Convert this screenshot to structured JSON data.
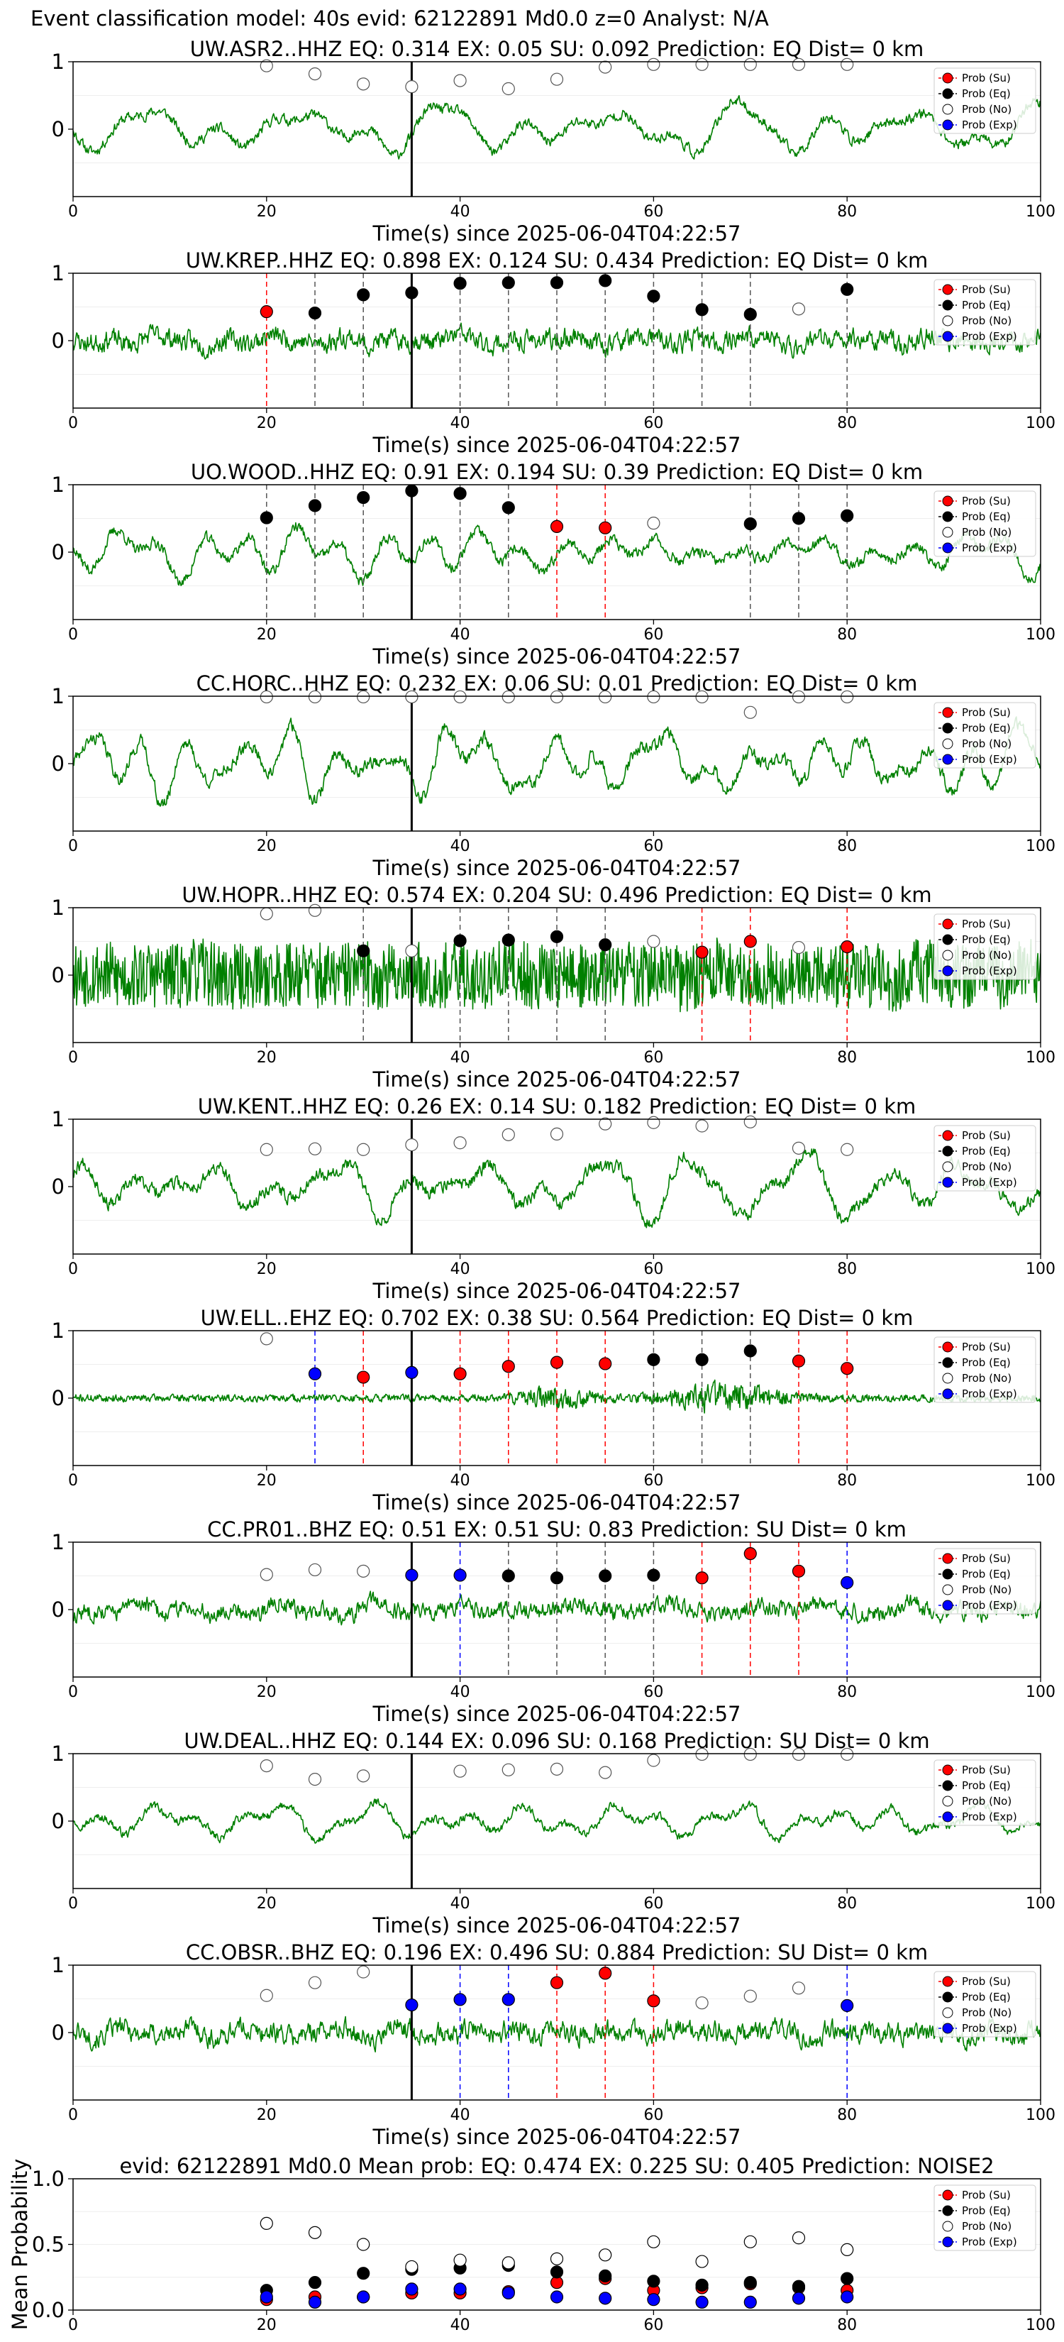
{
  "suptitle": "Event classification model: 40s evid: 62122891 Md0.0 z=0 Analyst: N/A",
  "legend_labels": [
    "Prob (Su)",
    "Prob (Eq)",
    "Prob (No)",
    "Prob (Exp)"
  ],
  "colors": {
    "su": "#ff0000",
    "eq": "#000000",
    "no": "#ffffff",
    "exp": "#0000ff",
    "waveform": "#008000"
  },
  "chart_data": [
    {
      "type": "line",
      "title": "UW.ASR2..HHZ   EQ: 0.314  EX: 0.05  SU: 0.092   Prediction: EQ    Dist= 0 km",
      "xlabel": "Time(s) since 2025-06-04T04:22:57",
      "xlim": [
        0,
        100
      ],
      "xticks": [
        0,
        20,
        40,
        60,
        80,
        100
      ],
      "ylim": [
        -1,
        1
      ],
      "yticks": [
        0,
        1
      ],
      "pick_time": 35,
      "wave": {
        "amplitude": 0.55,
        "seed": 11,
        "kind": "lowfreq"
      },
      "prob_markers": [
        {
          "t": 20,
          "p": 0.94,
          "c": "no"
        },
        {
          "t": 25,
          "p": 0.82,
          "c": "no"
        },
        {
          "t": 30,
          "p": 0.67,
          "c": "no"
        },
        {
          "t": 35,
          "p": 0.63,
          "c": "no"
        },
        {
          "t": 40,
          "p": 0.72,
          "c": "no"
        },
        {
          "t": 45,
          "p": 0.6,
          "c": "no"
        },
        {
          "t": 50,
          "p": 0.74,
          "c": "no"
        },
        {
          "t": 55,
          "p": 0.92,
          "c": "no"
        },
        {
          "t": 60,
          "p": 0.96,
          "c": "no"
        },
        {
          "t": 65,
          "p": 0.96,
          "c": "no"
        },
        {
          "t": 70,
          "p": 0.96,
          "c": "no"
        },
        {
          "t": 75,
          "p": 0.96,
          "c": "no"
        },
        {
          "t": 80,
          "p": 0.96,
          "c": "no"
        }
      ]
    },
    {
      "type": "line",
      "title": "UW.KREP..HHZ   EQ: 0.898  EX: 0.124  SU: 0.434   Prediction: EQ    Dist= 0 km",
      "xlabel": "Time(s) since 2025-06-04T04:22:57",
      "xlim": [
        0,
        100
      ],
      "xticks": [
        0,
        20,
        40,
        60,
        80,
        100
      ],
      "ylim": [
        -1,
        1
      ],
      "yticks": [
        0,
        1
      ],
      "pick_time": 35,
      "wave": {
        "amplitude": 0.35,
        "seed": 23,
        "kind": "noisy"
      },
      "prob_markers": [
        {
          "t": 20,
          "p": 0.43,
          "c": "su"
        },
        {
          "t": 25,
          "p": 0.41,
          "c": "eq"
        },
        {
          "t": 30,
          "p": 0.68,
          "c": "eq"
        },
        {
          "t": 35,
          "p": 0.71,
          "c": "eq"
        },
        {
          "t": 40,
          "p": 0.85,
          "c": "eq"
        },
        {
          "t": 45,
          "p": 0.86,
          "c": "eq"
        },
        {
          "t": 50,
          "p": 0.86,
          "c": "eq"
        },
        {
          "t": 55,
          "p": 0.89,
          "c": "eq"
        },
        {
          "t": 60,
          "p": 0.66,
          "c": "eq"
        },
        {
          "t": 65,
          "p": 0.46,
          "c": "eq"
        },
        {
          "t": 70,
          "p": 0.39,
          "c": "eq"
        },
        {
          "t": 75,
          "p": 0.47,
          "c": "no"
        },
        {
          "t": 80,
          "p": 0.76,
          "c": "eq"
        }
      ]
    },
    {
      "type": "line",
      "title": "UO.WOOD..HHZ   EQ: 0.91  EX: 0.194  SU: 0.39   Prediction: EQ    Dist= 0 km",
      "xlabel": "Time(s) since 2025-06-04T04:22:57",
      "xlim": [
        0,
        100
      ],
      "xticks": [
        0,
        20,
        40,
        60,
        80,
        100
      ],
      "ylim": [
        -1,
        1
      ],
      "yticks": [
        0,
        1
      ],
      "pick_time": 35,
      "wave": {
        "amplitude": 0.6,
        "seed": 37,
        "kind": "lowfreq"
      },
      "prob_markers": [
        {
          "t": 20,
          "p": 0.51,
          "c": "eq"
        },
        {
          "t": 25,
          "p": 0.69,
          "c": "eq"
        },
        {
          "t": 30,
          "p": 0.81,
          "c": "eq"
        },
        {
          "t": 35,
          "p": 0.91,
          "c": "eq"
        },
        {
          "t": 40,
          "p": 0.87,
          "c": "eq"
        },
        {
          "t": 45,
          "p": 0.66,
          "c": "eq"
        },
        {
          "t": 50,
          "p": 0.38,
          "c": "su"
        },
        {
          "t": 55,
          "p": 0.36,
          "c": "su"
        },
        {
          "t": 60,
          "p": 0.43,
          "c": "no"
        },
        {
          "t": 70,
          "p": 0.42,
          "c": "eq"
        },
        {
          "t": 75,
          "p": 0.5,
          "c": "eq"
        },
        {
          "t": 80,
          "p": 0.54,
          "c": "eq"
        }
      ]
    },
    {
      "type": "line",
      "title": "CC.HORC..HHZ   EQ: 0.232  EX: 0.06  SU: 0.01   Prediction: EQ    Dist= 0 km",
      "xlabel": "Time(s) since 2025-06-04T04:22:57",
      "xlim": [
        0,
        100
      ],
      "xticks": [
        0,
        20,
        40,
        60,
        80,
        100
      ],
      "ylim": [
        -1,
        1
      ],
      "yticks": [
        0,
        1
      ],
      "pick_time": 35,
      "wave": {
        "amplitude": 0.7,
        "seed": 41,
        "kind": "lowfreq"
      },
      "prob_markers": [
        {
          "t": 20,
          "p": 0.99,
          "c": "no"
        },
        {
          "t": 25,
          "p": 0.99,
          "c": "no"
        },
        {
          "t": 30,
          "p": 0.99,
          "c": "no"
        },
        {
          "t": 35,
          "p": 0.99,
          "c": "no"
        },
        {
          "t": 40,
          "p": 0.99,
          "c": "no"
        },
        {
          "t": 45,
          "p": 0.99,
          "c": "no"
        },
        {
          "t": 50,
          "p": 0.99,
          "c": "no"
        },
        {
          "t": 55,
          "p": 0.99,
          "c": "no"
        },
        {
          "t": 60,
          "p": 0.99,
          "c": "no"
        },
        {
          "t": 65,
          "p": 0.99,
          "c": "no"
        },
        {
          "t": 70,
          "p": 0.76,
          "c": "no"
        },
        {
          "t": 75,
          "p": 0.99,
          "c": "no"
        },
        {
          "t": 80,
          "p": 0.99,
          "c": "no"
        }
      ]
    },
    {
      "type": "line",
      "title": "UW.HOPR..HHZ   EQ: 0.574  EX: 0.204  SU: 0.496   Prediction: EQ    Dist= 0 km",
      "xlabel": "Time(s) since 2025-06-04T04:22:57",
      "xlim": [
        0,
        100
      ],
      "xticks": [
        0,
        20,
        40,
        60,
        80,
        100
      ],
      "ylim": [
        -1,
        1
      ],
      "yticks": [
        0,
        1
      ],
      "pick_time": 35,
      "wave": {
        "amplitude": 0.55,
        "seed": 53,
        "kind": "highfreq"
      },
      "prob_markers": [
        {
          "t": 20,
          "p": 0.91,
          "c": "no"
        },
        {
          "t": 25,
          "p": 0.96,
          "c": "no"
        },
        {
          "t": 30,
          "p": 0.36,
          "c": "eq"
        },
        {
          "t": 35,
          "p": 0.36,
          "c": "no"
        },
        {
          "t": 40,
          "p": 0.51,
          "c": "eq"
        },
        {
          "t": 45,
          "p": 0.52,
          "c": "eq"
        },
        {
          "t": 50,
          "p": 0.57,
          "c": "eq"
        },
        {
          "t": 55,
          "p": 0.45,
          "c": "eq"
        },
        {
          "t": 60,
          "p": 0.5,
          "c": "no"
        },
        {
          "t": 65,
          "p": 0.34,
          "c": "su"
        },
        {
          "t": 70,
          "p": 0.5,
          "c": "su"
        },
        {
          "t": 75,
          "p": 0.41,
          "c": "no"
        },
        {
          "t": 80,
          "p": 0.42,
          "c": "su"
        }
      ]
    },
    {
      "type": "line",
      "title": "UW.KENT..HHZ   EQ: 0.26  EX: 0.14  SU: 0.182   Prediction: EQ    Dist= 0 km",
      "xlabel": "Time(s) since 2025-06-04T04:22:57",
      "xlim": [
        0,
        100
      ],
      "xticks": [
        0,
        20,
        40,
        60,
        80,
        100
      ],
      "ylim": [
        -1,
        1
      ],
      "yticks": [
        0,
        1
      ],
      "pick_time": 35,
      "wave": {
        "amplitude": 0.7,
        "seed": 67,
        "kind": "lowfreq"
      },
      "prob_markers": [
        {
          "t": 20,
          "p": 0.55,
          "c": "no"
        },
        {
          "t": 25,
          "p": 0.56,
          "c": "no"
        },
        {
          "t": 30,
          "p": 0.55,
          "c": "no"
        },
        {
          "t": 35,
          "p": 0.62,
          "c": "no"
        },
        {
          "t": 40,
          "p": 0.65,
          "c": "no"
        },
        {
          "t": 45,
          "p": 0.77,
          "c": "no"
        },
        {
          "t": 50,
          "p": 0.78,
          "c": "no"
        },
        {
          "t": 55,
          "p": 0.93,
          "c": "no"
        },
        {
          "t": 60,
          "p": 0.95,
          "c": "no"
        },
        {
          "t": 65,
          "p": 0.9,
          "c": "no"
        },
        {
          "t": 70,
          "p": 0.96,
          "c": "no"
        },
        {
          "t": 75,
          "p": 0.57,
          "c": "no"
        },
        {
          "t": 80,
          "p": 0.55,
          "c": "no"
        }
      ]
    },
    {
      "type": "line",
      "title": "UW.ELL..EHZ   EQ: 0.702  EX: 0.38  SU: 0.564   Prediction: EQ    Dist= 0 km",
      "xlabel": "Time(s) since 2025-06-04T04:22:57",
      "xlim": [
        0,
        100
      ],
      "xticks": [
        0,
        20,
        40,
        60,
        80,
        100
      ],
      "ylim": [
        -1,
        1
      ],
      "yticks": [
        0,
        1
      ],
      "pick_time": 35,
      "wave": {
        "amplitude": 0.12,
        "seed": 71,
        "kind": "burst"
      },
      "prob_markers": [
        {
          "t": 20,
          "p": 0.88,
          "c": "no"
        },
        {
          "t": 25,
          "p": 0.36,
          "c": "exp"
        },
        {
          "t": 30,
          "p": 0.31,
          "c": "su"
        },
        {
          "t": 35,
          "p": 0.38,
          "c": "exp"
        },
        {
          "t": 40,
          "p": 0.36,
          "c": "su"
        },
        {
          "t": 45,
          "p": 0.47,
          "c": "su"
        },
        {
          "t": 50,
          "p": 0.53,
          "c": "su"
        },
        {
          "t": 55,
          "p": 0.51,
          "c": "su"
        },
        {
          "t": 60,
          "p": 0.57,
          "c": "eq"
        },
        {
          "t": 65,
          "p": 0.57,
          "c": "eq"
        },
        {
          "t": 70,
          "p": 0.7,
          "c": "eq"
        },
        {
          "t": 75,
          "p": 0.55,
          "c": "su"
        },
        {
          "t": 80,
          "p": 0.44,
          "c": "su"
        }
      ]
    },
    {
      "type": "line",
      "title": "CC.PR01..BHZ   EQ: 0.51  EX: 0.51  SU: 0.83   Prediction: SU    Dist= 0 km",
      "xlabel": "Time(s) since 2025-06-04T04:22:57",
      "xlim": [
        0,
        100
      ],
      "xticks": [
        0,
        20,
        40,
        60,
        80,
        100
      ],
      "ylim": [
        -1,
        1
      ],
      "yticks": [
        0,
        1
      ],
      "pick_time": 35,
      "wave": {
        "amplitude": 0.3,
        "seed": 83,
        "kind": "noisy"
      },
      "prob_markers": [
        {
          "t": 20,
          "p": 0.52,
          "c": "no"
        },
        {
          "t": 25,
          "p": 0.59,
          "c": "no"
        },
        {
          "t": 30,
          "p": 0.57,
          "c": "no"
        },
        {
          "t": 35,
          "p": 0.51,
          "c": "exp"
        },
        {
          "t": 40,
          "p": 0.51,
          "c": "exp"
        },
        {
          "t": 45,
          "p": 0.5,
          "c": "eq"
        },
        {
          "t": 50,
          "p": 0.47,
          "c": "eq"
        },
        {
          "t": 55,
          "p": 0.5,
          "c": "eq"
        },
        {
          "t": 60,
          "p": 0.51,
          "c": "eq"
        },
        {
          "t": 65,
          "p": 0.47,
          "c": "su"
        },
        {
          "t": 70,
          "p": 0.83,
          "c": "su"
        },
        {
          "t": 75,
          "p": 0.57,
          "c": "su"
        },
        {
          "t": 80,
          "p": 0.4,
          "c": "exp"
        }
      ]
    },
    {
      "type": "line",
      "title": "UW.DEAL..HHZ   EQ: 0.144  EX: 0.096  SU: 0.168   Prediction: SU    Dist= 0 km",
      "xlabel": "Time(s) since 2025-06-04T04:22:57",
      "xlim": [
        0,
        100
      ],
      "xticks": [
        0,
        20,
        40,
        60,
        80,
        100
      ],
      "ylim": [
        -1,
        1
      ],
      "yticks": [
        0,
        1
      ],
      "pick_time": 35,
      "wave": {
        "amplitude": 0.45,
        "seed": 97,
        "kind": "lowfreq"
      },
      "prob_markers": [
        {
          "t": 20,
          "p": 0.82,
          "c": "no"
        },
        {
          "t": 25,
          "p": 0.62,
          "c": "no"
        },
        {
          "t": 30,
          "p": 0.67,
          "c": "no"
        },
        {
          "t": 40,
          "p": 0.74,
          "c": "no"
        },
        {
          "t": 45,
          "p": 0.76,
          "c": "no"
        },
        {
          "t": 50,
          "p": 0.77,
          "c": "no"
        },
        {
          "t": 55,
          "p": 0.72,
          "c": "no"
        },
        {
          "t": 60,
          "p": 0.9,
          "c": "no"
        },
        {
          "t": 65,
          "p": 0.99,
          "c": "no"
        },
        {
          "t": 70,
          "p": 0.99,
          "c": "no"
        },
        {
          "t": 75,
          "p": 0.99,
          "c": "no"
        },
        {
          "t": 80,
          "p": 0.99,
          "c": "no"
        }
      ]
    },
    {
      "type": "line",
      "title": "CC.OBSR..BHZ   EQ: 0.196  EX: 0.496  SU: 0.884   Prediction: SU    Dist= 0 km",
      "xlabel": "Time(s) since 2025-06-04T04:22:57",
      "xlim": [
        0,
        100
      ],
      "xticks": [
        0,
        20,
        40,
        60,
        80,
        100
      ],
      "ylim": [
        -1,
        1
      ],
      "yticks": [
        0,
        1
      ],
      "pick_time": 35,
      "wave": {
        "amplitude": 0.35,
        "seed": 101,
        "kind": "noisy"
      },
      "prob_markers": [
        {
          "t": 20,
          "p": 0.55,
          "c": "no"
        },
        {
          "t": 25,
          "p": 0.74,
          "c": "no"
        },
        {
          "t": 30,
          "p": 0.9,
          "c": "no"
        },
        {
          "t": 35,
          "p": 0.41,
          "c": "exp"
        },
        {
          "t": 40,
          "p": 0.49,
          "c": "exp"
        },
        {
          "t": 45,
          "p": 0.49,
          "c": "exp"
        },
        {
          "t": 50,
          "p": 0.74,
          "c": "su"
        },
        {
          "t": 55,
          "p": 0.88,
          "c": "su"
        },
        {
          "t": 60,
          "p": 0.47,
          "c": "su"
        },
        {
          "t": 65,
          "p": 0.44,
          "c": "no"
        },
        {
          "t": 70,
          "p": 0.54,
          "c": "no"
        },
        {
          "t": 75,
          "p": 0.66,
          "c": "no"
        },
        {
          "t": 80,
          "p": 0.4,
          "c": "exp"
        }
      ]
    },
    {
      "type": "scatter",
      "title": "evid: 62122891  Md0.0   Mean prob:   EQ: 0.474  EX: 0.225  SU: 0.405   Prediction: NOISE2",
      "xlabel": "",
      "ylabel": "Mean Probability",
      "xlim": [
        0,
        100
      ],
      "xticks": [
        0,
        20,
        40,
        60,
        80,
        100
      ],
      "ylim": [
        0,
        1
      ],
      "yticks": [
        "0.0",
        "0.5",
        "1.0"
      ],
      "x": [
        20,
        25,
        30,
        35,
        40,
        45,
        50,
        55,
        60,
        65,
        70,
        75,
        80
      ],
      "series": [
        {
          "name": "Prob (Su)",
          "color": "#ff0000",
          "fill": "#ff0000",
          "values": [
            0.08,
            0.1,
            0.1,
            0.13,
            0.13,
            0.14,
            0.21,
            0.24,
            0.15,
            0.17,
            0.2,
            0.17,
            0.15
          ]
        },
        {
          "name": "Prob (Eq)",
          "color": "#000000",
          "fill": "#000000",
          "values": [
            0.15,
            0.21,
            0.28,
            0.31,
            0.32,
            0.34,
            0.29,
            0.26,
            0.22,
            0.19,
            0.21,
            0.18,
            0.24
          ]
        },
        {
          "name": "Prob (No)",
          "color": "#000000",
          "fill": "#ffffff",
          "values": [
            0.66,
            0.59,
            0.5,
            0.33,
            0.38,
            0.36,
            0.39,
            0.42,
            0.52,
            0.37,
            0.52,
            0.55,
            0.46
          ]
        },
        {
          "name": "Prob (Exp)",
          "color": "#0000ff",
          "fill": "#0000ff",
          "values": [
            0.1,
            0.06,
            0.1,
            0.16,
            0.16,
            0.13,
            0.1,
            0.09,
            0.08,
            0.06,
            0.06,
            0.09,
            0.1
          ]
        }
      ]
    }
  ]
}
